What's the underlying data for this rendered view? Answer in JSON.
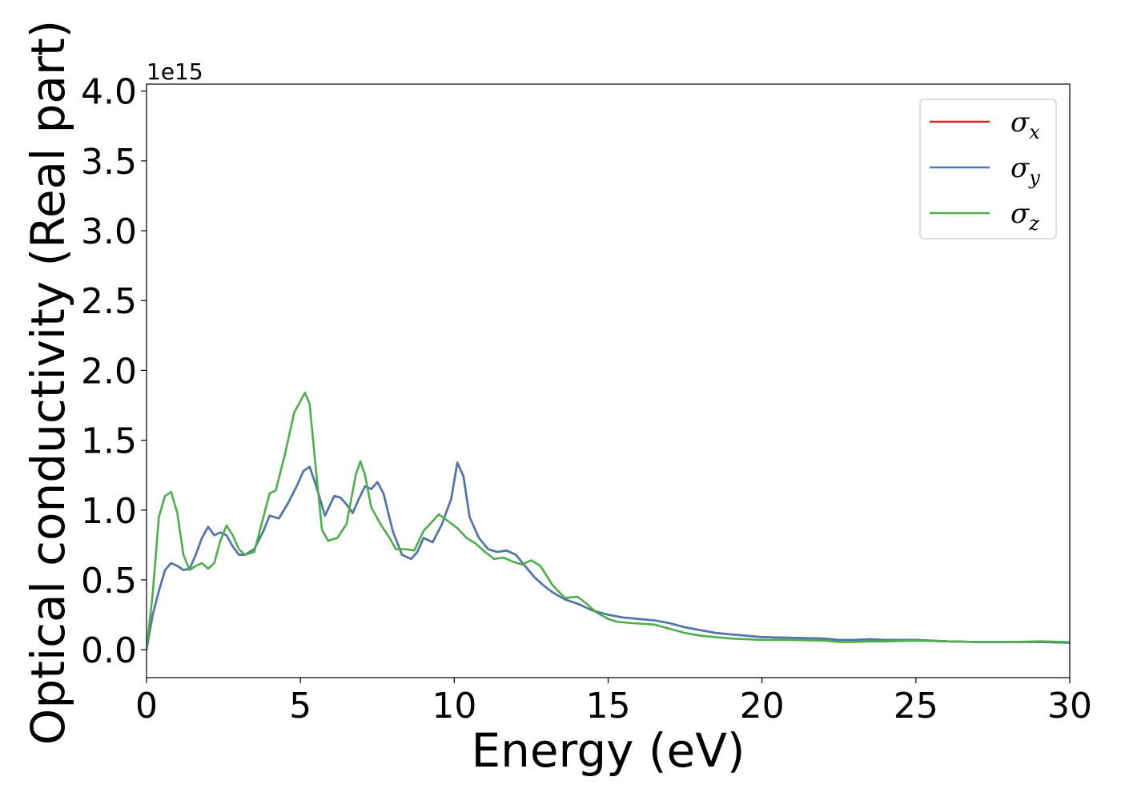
{
  "chart_data": {
    "type": "line",
    "title": "",
    "xlabel": "Energy (eV)",
    "ylabel": "Optical conductivity (Real part)",
    "y_offset_label": "1e15",
    "xlim": [
      0,
      30
    ],
    "ylim": [
      -0.2,
      4.05
    ],
    "x_ticks": [
      0,
      5,
      10,
      15,
      20,
      25,
      30
    ],
    "y_ticks": [
      0.0,
      0.5,
      1.0,
      1.5,
      2.0,
      2.5,
      3.0,
      3.5,
      4.0
    ],
    "x_tick_labels": [
      "0",
      "5",
      "10",
      "15",
      "20",
      "25",
      "30"
    ],
    "y_tick_labels": [
      "0.0",
      "0.5",
      "1.0",
      "1.5",
      "2.0",
      "2.5",
      "3.0",
      "3.5",
      "4.0"
    ],
    "grid": false,
    "legend_position": "top-right",
    "series": [
      {
        "name": "σx",
        "label_base": "σ",
        "label_sub": "x",
        "color": "#d62728",
        "points": [
          [
            0,
            0.0
          ],
          [
            0.2,
            0.25
          ],
          [
            0.4,
            0.42
          ],
          [
            0.6,
            0.57
          ],
          [
            0.8,
            0.62
          ],
          [
            1.0,
            0.6
          ],
          [
            1.2,
            0.57
          ],
          [
            1.4,
            0.58
          ],
          [
            1.6,
            0.68
          ],
          [
            1.8,
            0.8
          ],
          [
            2.0,
            0.88
          ],
          [
            2.2,
            0.82
          ],
          [
            2.4,
            0.84
          ],
          [
            2.6,
            0.82
          ],
          [
            2.8,
            0.74
          ],
          [
            3.0,
            0.68
          ],
          [
            3.2,
            0.68
          ],
          [
            3.5,
            0.72
          ],
          [
            3.8,
            0.85
          ],
          [
            4.0,
            0.96
          ],
          [
            4.3,
            0.94
          ],
          [
            4.6,
            1.05
          ],
          [
            4.9,
            1.18
          ],
          [
            5.1,
            1.28
          ],
          [
            5.3,
            1.31
          ],
          [
            5.5,
            1.18
          ],
          [
            5.8,
            0.96
          ],
          [
            6.1,
            1.1
          ],
          [
            6.3,
            1.09
          ],
          [
            6.5,
            1.04
          ],
          [
            6.7,
            0.98
          ],
          [
            6.9,
            1.08
          ],
          [
            7.1,
            1.17
          ],
          [
            7.3,
            1.15
          ],
          [
            7.5,
            1.2
          ],
          [
            7.7,
            1.12
          ],
          [
            8.0,
            0.85
          ],
          [
            8.3,
            0.68
          ],
          [
            8.6,
            0.65
          ],
          [
            8.8,
            0.7
          ],
          [
            9.0,
            0.8
          ],
          [
            9.3,
            0.77
          ],
          [
            9.6,
            0.9
          ],
          [
            9.9,
            1.08
          ],
          [
            10.1,
            1.34
          ],
          [
            10.3,
            1.24
          ],
          [
            10.5,
            0.95
          ],
          [
            10.8,
            0.8
          ],
          [
            11.1,
            0.72
          ],
          [
            11.4,
            0.7
          ],
          [
            11.7,
            0.71
          ],
          [
            12.0,
            0.68
          ],
          [
            12.3,
            0.6
          ],
          [
            12.6,
            0.52
          ],
          [
            12.9,
            0.46
          ],
          [
            13.2,
            0.41
          ],
          [
            13.6,
            0.36
          ],
          [
            14.0,
            0.33
          ],
          [
            14.5,
            0.28
          ],
          [
            15.0,
            0.25
          ],
          [
            15.5,
            0.23
          ],
          [
            16.0,
            0.22
          ],
          [
            16.5,
            0.21
          ],
          [
            17.0,
            0.19
          ],
          [
            17.5,
            0.16
          ],
          [
            18.0,
            0.14
          ],
          [
            18.5,
            0.12
          ],
          [
            19.0,
            0.11
          ],
          [
            19.5,
            0.1
          ],
          [
            20.0,
            0.09
          ],
          [
            21.0,
            0.085
          ],
          [
            22.0,
            0.08
          ],
          [
            22.5,
            0.07
          ],
          [
            23.0,
            0.07
          ],
          [
            23.5,
            0.075
          ],
          [
            24.0,
            0.07
          ],
          [
            25.0,
            0.07
          ],
          [
            26.0,
            0.06
          ],
          [
            27.0,
            0.055
          ],
          [
            28.0,
            0.055
          ],
          [
            29.0,
            0.055
          ],
          [
            30.0,
            0.05
          ]
        ]
      },
      {
        "name": "σy",
        "label_base": "σ",
        "label_sub": "y",
        "color": "#4a7ab0",
        "points": [
          [
            0,
            0.0
          ],
          [
            0.2,
            0.25
          ],
          [
            0.4,
            0.42
          ],
          [
            0.6,
            0.57
          ],
          [
            0.8,
            0.62
          ],
          [
            1.0,
            0.6
          ],
          [
            1.2,
            0.57
          ],
          [
            1.4,
            0.58
          ],
          [
            1.6,
            0.68
          ],
          [
            1.8,
            0.8
          ],
          [
            2.0,
            0.88
          ],
          [
            2.2,
            0.82
          ],
          [
            2.4,
            0.84
          ],
          [
            2.6,
            0.82
          ],
          [
            2.8,
            0.74
          ],
          [
            3.0,
            0.68
          ],
          [
            3.2,
            0.68
          ],
          [
            3.5,
            0.72
          ],
          [
            3.8,
            0.85
          ],
          [
            4.0,
            0.96
          ],
          [
            4.3,
            0.94
          ],
          [
            4.6,
            1.05
          ],
          [
            4.9,
            1.18
          ],
          [
            5.1,
            1.28
          ],
          [
            5.3,
            1.31
          ],
          [
            5.5,
            1.18
          ],
          [
            5.8,
            0.96
          ],
          [
            6.1,
            1.1
          ],
          [
            6.3,
            1.09
          ],
          [
            6.5,
            1.04
          ],
          [
            6.7,
            0.98
          ],
          [
            6.9,
            1.08
          ],
          [
            7.1,
            1.17
          ],
          [
            7.3,
            1.15
          ],
          [
            7.5,
            1.2
          ],
          [
            7.7,
            1.12
          ],
          [
            8.0,
            0.85
          ],
          [
            8.3,
            0.68
          ],
          [
            8.6,
            0.65
          ],
          [
            8.8,
            0.7
          ],
          [
            9.0,
            0.8
          ],
          [
            9.3,
            0.77
          ],
          [
            9.6,
            0.9
          ],
          [
            9.9,
            1.08
          ],
          [
            10.1,
            1.34
          ],
          [
            10.3,
            1.24
          ],
          [
            10.5,
            0.95
          ],
          [
            10.8,
            0.8
          ],
          [
            11.1,
            0.72
          ],
          [
            11.4,
            0.7
          ],
          [
            11.7,
            0.71
          ],
          [
            12.0,
            0.68
          ],
          [
            12.3,
            0.6
          ],
          [
            12.6,
            0.52
          ],
          [
            12.9,
            0.46
          ],
          [
            13.2,
            0.41
          ],
          [
            13.6,
            0.36
          ],
          [
            14.0,
            0.33
          ],
          [
            14.5,
            0.28
          ],
          [
            15.0,
            0.25
          ],
          [
            15.5,
            0.23
          ],
          [
            16.0,
            0.22
          ],
          [
            16.5,
            0.21
          ],
          [
            17.0,
            0.19
          ],
          [
            17.5,
            0.16
          ],
          [
            18.0,
            0.14
          ],
          [
            18.5,
            0.12
          ],
          [
            19.0,
            0.11
          ],
          [
            19.5,
            0.1
          ],
          [
            20.0,
            0.09
          ],
          [
            21.0,
            0.085
          ],
          [
            22.0,
            0.08
          ],
          [
            22.5,
            0.07
          ],
          [
            23.0,
            0.07
          ],
          [
            23.5,
            0.075
          ],
          [
            24.0,
            0.07
          ],
          [
            25.0,
            0.07
          ],
          [
            26.0,
            0.06
          ],
          [
            27.0,
            0.055
          ],
          [
            28.0,
            0.055
          ],
          [
            29.0,
            0.055
          ],
          [
            30.0,
            0.05
          ]
        ]
      },
      {
        "name": "σz",
        "label_base": "σ",
        "label_sub": "z",
        "color": "#4daf4a",
        "points": [
          [
            0,
            0.0
          ],
          [
            0.2,
            0.4
          ],
          [
            0.4,
            0.95
          ],
          [
            0.6,
            1.1
          ],
          [
            0.8,
            1.13
          ],
          [
            1.0,
            0.98
          ],
          [
            1.2,
            0.68
          ],
          [
            1.4,
            0.57
          ],
          [
            1.6,
            0.6
          ],
          [
            1.8,
            0.62
          ],
          [
            2.0,
            0.58
          ],
          [
            2.2,
            0.62
          ],
          [
            2.4,
            0.78
          ],
          [
            2.6,
            0.89
          ],
          [
            2.8,
            0.82
          ],
          [
            3.0,
            0.72
          ],
          [
            3.2,
            0.68
          ],
          [
            3.5,
            0.7
          ],
          [
            3.8,
            0.95
          ],
          [
            4.0,
            1.12
          ],
          [
            4.2,
            1.14
          ],
          [
            4.5,
            1.4
          ],
          [
            4.8,
            1.7
          ],
          [
            5.0,
            1.78
          ],
          [
            5.15,
            1.84
          ],
          [
            5.3,
            1.76
          ],
          [
            5.5,
            1.3
          ],
          [
            5.7,
            0.86
          ],
          [
            5.9,
            0.78
          ],
          [
            6.2,
            0.8
          ],
          [
            6.5,
            0.9
          ],
          [
            6.8,
            1.25
          ],
          [
            6.95,
            1.35
          ],
          [
            7.1,
            1.25
          ],
          [
            7.3,
            1.02
          ],
          [
            7.6,
            0.9
          ],
          [
            7.9,
            0.8
          ],
          [
            8.1,
            0.72
          ],
          [
            8.4,
            0.72
          ],
          [
            8.7,
            0.71
          ],
          [
            9.0,
            0.85
          ],
          [
            9.3,
            0.92
          ],
          [
            9.5,
            0.97
          ],
          [
            9.8,
            0.92
          ],
          [
            10.1,
            0.87
          ],
          [
            10.4,
            0.8
          ],
          [
            10.7,
            0.76
          ],
          [
            11.0,
            0.7
          ],
          [
            11.3,
            0.65
          ],
          [
            11.6,
            0.66
          ],
          [
            11.9,
            0.63
          ],
          [
            12.2,
            0.61
          ],
          [
            12.5,
            0.64
          ],
          [
            12.8,
            0.6
          ],
          [
            13.2,
            0.46
          ],
          [
            13.6,
            0.37
          ],
          [
            14.0,
            0.38
          ],
          [
            14.3,
            0.33
          ],
          [
            14.6,
            0.27
          ],
          [
            15.0,
            0.22
          ],
          [
            15.3,
            0.2
          ],
          [
            15.8,
            0.19
          ],
          [
            16.5,
            0.18
          ],
          [
            17.0,
            0.15
          ],
          [
            17.5,
            0.12
          ],
          [
            18.0,
            0.1
          ],
          [
            18.5,
            0.09
          ],
          [
            19.0,
            0.08
          ],
          [
            19.5,
            0.075
          ],
          [
            20.0,
            0.07
          ],
          [
            21.0,
            0.07
          ],
          [
            22.0,
            0.065
          ],
          [
            22.5,
            0.055
          ],
          [
            23.0,
            0.055
          ],
          [
            23.5,
            0.06
          ],
          [
            24.0,
            0.06
          ],
          [
            25.0,
            0.065
          ],
          [
            26.0,
            0.06
          ],
          [
            27.0,
            0.055
          ],
          [
            28.0,
            0.055
          ],
          [
            29.0,
            0.06
          ],
          [
            30.0,
            0.055
          ]
        ]
      }
    ]
  }
}
